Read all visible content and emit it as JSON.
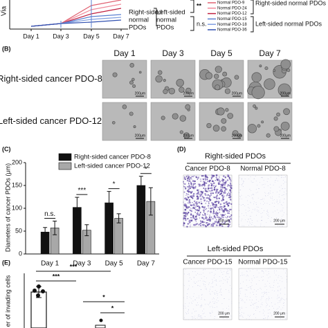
{
  "panel_a": {
    "y_label": "Via",
    "x_labels": [
      "Day 1",
      "Day 3",
      "Day 5",
      "Day 7"
    ],
    "curve_labels": [
      [
        "Right-sided",
        "normal",
        "PDOs"
      ],
      [
        "Left-sided",
        "normal",
        "PDOs"
      ]
    ],
    "significance": [
      "**",
      "n.s."
    ],
    "legend": [
      {
        "name": "Normal PDO-9",
        "color": "#e06070"
      },
      {
        "name": "Normal PDO-24",
        "color": "#f08a9a"
      },
      {
        "name": "Normal PDO-12",
        "color": "#c02040"
      },
      {
        "name": "Normal PDO-15",
        "color": "#5a7fd0"
      },
      {
        "name": "Normal PDO-18",
        "color": "#7f9ee0"
      },
      {
        "name": "Normal PDO-36",
        "color": "#3050b0"
      }
    ],
    "group_labels": [
      "Right-sided normal PDOs",
      "Left-sided normal PDOs"
    ]
  },
  "panel_b": {
    "label": "(B)",
    "columns": [
      "Day 1",
      "Day 3",
      "Day 5",
      "Day 7"
    ],
    "rows": [
      "Right-sided cancer PDO-8",
      "Left-sided cancer PDO-12"
    ],
    "scale_bar": "200μm"
  },
  "panel_c": {
    "label": "(C)",
    "type": "bar",
    "y_label": "Diameters of cancer PDOs (μm)",
    "categories": [
      "Day 1",
      "Day 3",
      "Day 5",
      "Day 7"
    ],
    "series": [
      {
        "name": "Right-sided cancer PDO-8",
        "color": "#111111",
        "values": [
          48,
          102,
          112,
          150
        ],
        "errors": [
          10,
          22,
          25,
          20
        ]
      },
      {
        "name": "Left-sided cancer PDO-12",
        "color": "#a8a8a8",
        "values": [
          57,
          52,
          78,
          115
        ],
        "errors": [
          15,
          12,
          10,
          30
        ]
      }
    ],
    "significance": [
      "n.s.",
      "***",
      "*",
      "*"
    ],
    "ylim": [
      0,
      200
    ],
    "yticks": [
      0,
      50,
      100,
      150,
      200
    ]
  },
  "panel_d": {
    "label": "(D)",
    "groups": [
      {
        "title": "Right-sided PDOs",
        "images": [
          "Cancer PDO-8",
          "Normal PDO-8"
        ]
      },
      {
        "title": "Left-sided PDOs",
        "images": [
          "Cancer PDO-15",
          "Normal PDO-15"
        ]
      }
    ],
    "scale_bar": "200 μm"
  },
  "panel_e": {
    "label": "(E)",
    "y_label": "er of invading cells",
    "significance": [
      "***",
      "***",
      "*",
      "*"
    ]
  }
}
